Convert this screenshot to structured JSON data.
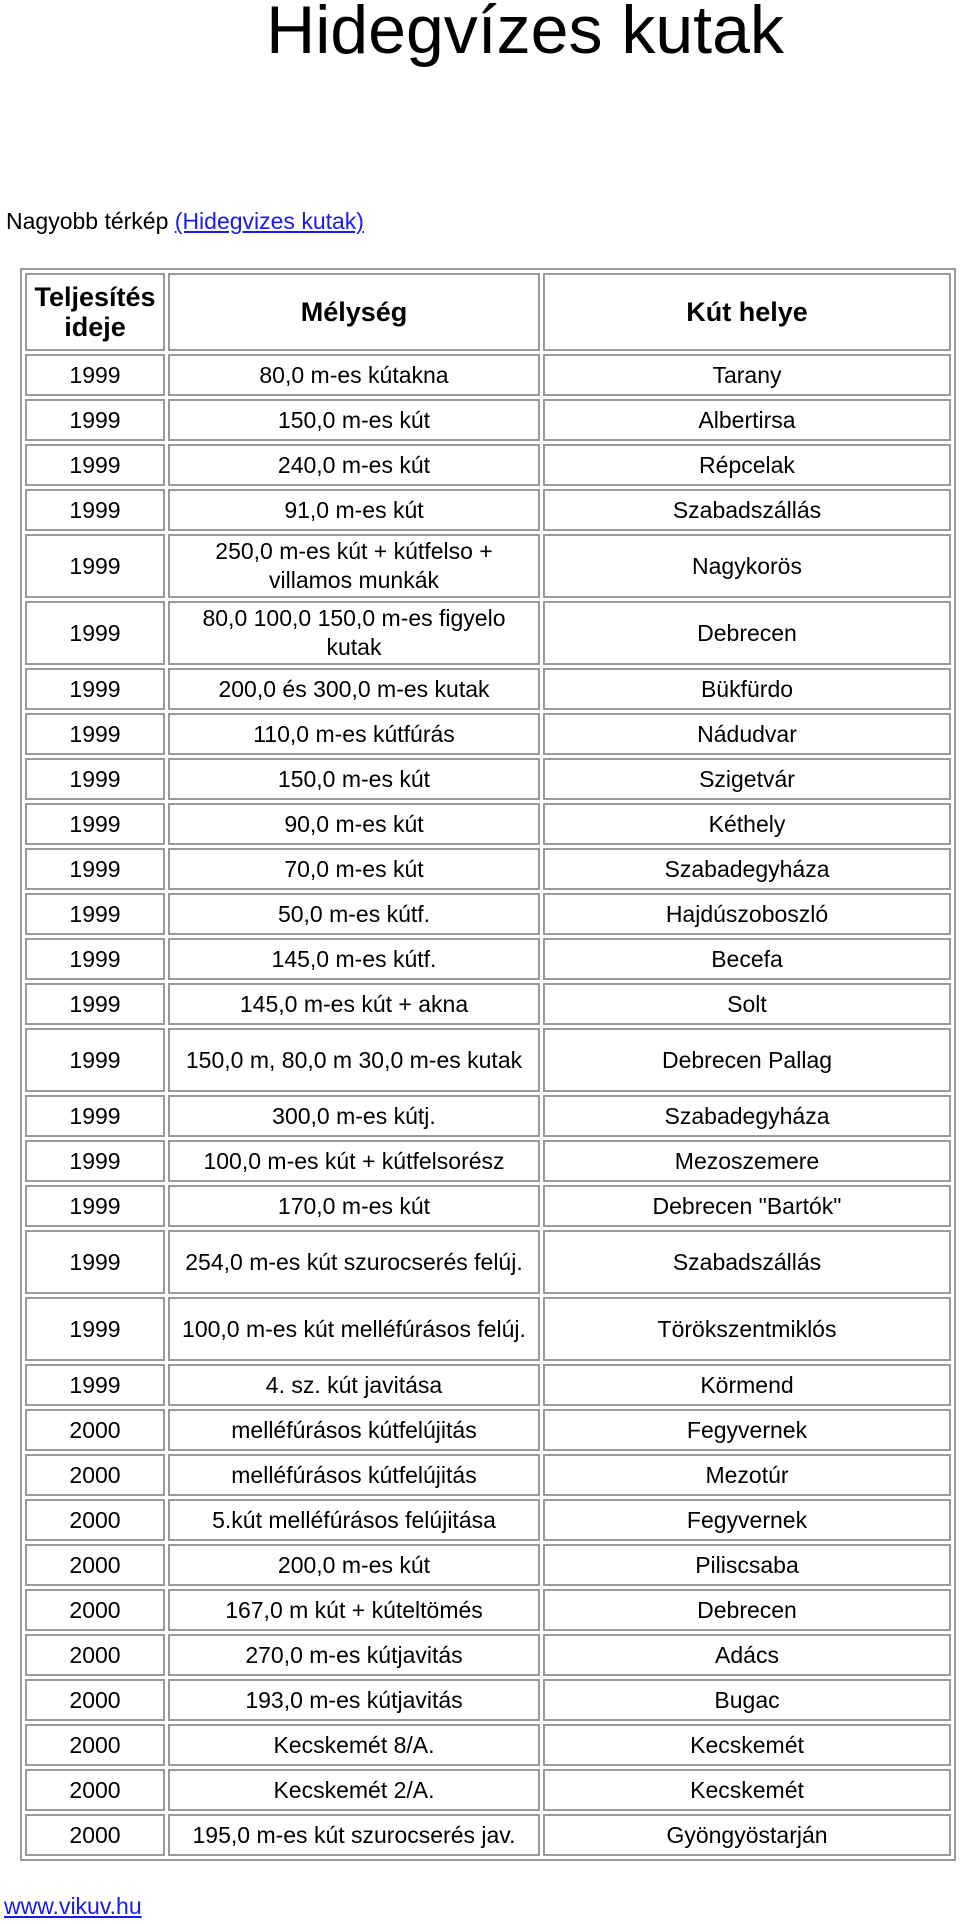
{
  "title": "Hidegvízes kutak",
  "map_line": {
    "prefix": "Nagyobb térkép ",
    "link": "(Hidegvizes kutak)"
  },
  "table": {
    "headers": [
      "Teljesítés ideje",
      "Mélység",
      "Kút helye"
    ],
    "rows": [
      [
        "1999",
        "80,0 m-es kútakna",
        "Tarany"
      ],
      [
        "1999",
        "150,0 m-es kút",
        "Albertirsa"
      ],
      [
        "1999",
        "240,0 m-es kút",
        "Répcelak"
      ],
      [
        "1999",
        "91,0 m-es kút",
        "Szabadszállás"
      ],
      [
        "1999",
        "250,0 m-es kút + kútfelso + villamos munkák",
        "Nagykorös"
      ],
      [
        "1999",
        "80,0 100,0 150,0 m-es figyelo kutak",
        "Debrecen"
      ],
      [
        "1999",
        "200,0 és 300,0 m-es kutak",
        "Bükfürdo"
      ],
      [
        "1999",
        "110,0 m-es kútfúrás",
        "Nádudvar"
      ],
      [
        "1999",
        "150,0 m-es kút",
        "Szigetvár"
      ],
      [
        "1999",
        "90,0 m-es kút",
        "Kéthely"
      ],
      [
        "1999",
        "70,0 m-es kút",
        "Szabadegyháza"
      ],
      [
        "1999",
        "50,0 m-es kútf.",
        "Hajdúszoboszló"
      ],
      [
        "1999",
        "145,0 m-es kútf.",
        "Becefa"
      ],
      [
        "1999",
        "145,0 m-es kút + akna",
        "Solt"
      ],
      [
        "1999",
        "150,0 m, 80,0 m 30,0 m-es kutak",
        "Debrecen Pallag"
      ],
      [
        "1999",
        "300,0 m-es kútj.",
        "Szabadegyháza"
      ],
      [
        "1999",
        "100,0 m-es kút + kútfelsorész",
        "Mezoszemere"
      ],
      [
        "1999",
        "170,0 m-es kút",
        "Debrecen \"Bartók\""
      ],
      [
        "1999",
        "254,0 m-es kút szurocserés felúj.",
        "Szabadszállás"
      ],
      [
        "1999",
        "100,0 m-es kút melléfúrásos felúj.",
        "Törökszentmiklós"
      ],
      [
        "1999",
        "4. sz. kút javitása",
        "Körmend"
      ],
      [
        "2000",
        "melléfúrásos kútfelújitás",
        "Fegyvernek"
      ],
      [
        "2000",
        "melléfúrásos kútfelújitás",
        "Mezotúr"
      ],
      [
        "2000",
        "5.kút melléfúrásos felújitása",
        "Fegyvernek"
      ],
      [
        "2000",
        "200,0 m-es kút",
        "Piliscsaba"
      ],
      [
        "2000",
        "167,0 m kút + kúteltömés",
        "Debrecen"
      ],
      [
        "2000",
        "270,0 m-es kútjavitás",
        "Adács"
      ],
      [
        "2000",
        "193,0 m-es kútjavitás",
        "Bugac"
      ],
      [
        "2000",
        "Kecskemét 8/A.",
        "Kecskemét"
      ],
      [
        "2000",
        "Kecskemét 2/A.",
        "Kecskemét"
      ],
      [
        "2000",
        "195,0 m-es kút szurocserés jav.",
        "Gyöngyöstarján"
      ]
    ]
  },
  "footer": {
    "link": "www.vikuv.hu"
  }
}
